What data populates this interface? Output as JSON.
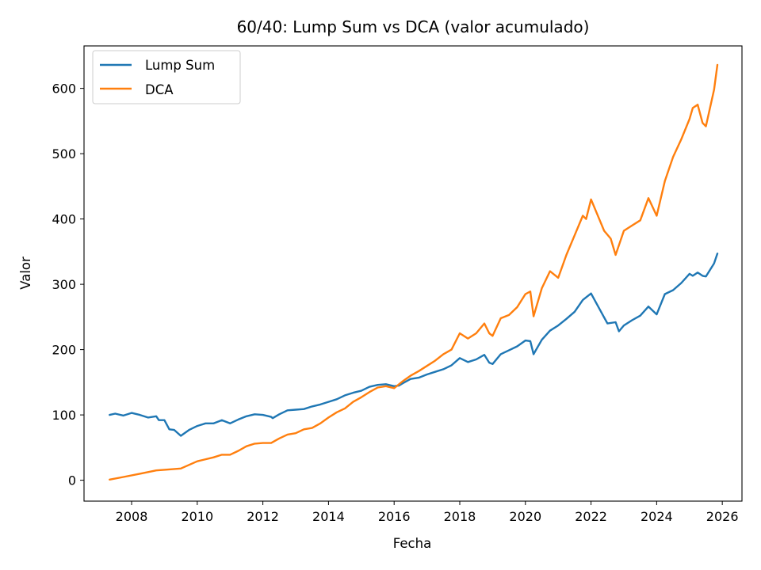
{
  "chart_data": {
    "type": "line",
    "title": "60/40: Lump Sum vs DCA (valor acumulado)",
    "xlabel": "Fecha",
    "ylabel": "Valor",
    "xlim": [
      2006.55,
      2026.6
    ],
    "ylim": [
      -32,
      665
    ],
    "xticks": [
      2008,
      2010,
      2012,
      2014,
      2016,
      2018,
      2020,
      2022,
      2024,
      2026
    ],
    "yticks": [
      0,
      100,
      200,
      300,
      400,
      500,
      600
    ],
    "grid": false,
    "legend_position": "upper-left",
    "series": [
      {
        "name": "Lump Sum",
        "color": "#1f77b4",
        "points": [
          [
            2007.33,
            100
          ],
          [
            2007.5,
            102
          ],
          [
            2007.75,
            99
          ],
          [
            2008.0,
            103
          ],
          [
            2008.25,
            100
          ],
          [
            2008.5,
            96
          ],
          [
            2008.75,
            98
          ],
          [
            2008.83,
            92
          ],
          [
            2009.0,
            92
          ],
          [
            2009.15,
            78
          ],
          [
            2009.3,
            77
          ],
          [
            2009.5,
            68
          ],
          [
            2009.75,
            77
          ],
          [
            2010.0,
            83
          ],
          [
            2010.25,
            87
          ],
          [
            2010.5,
            87
          ],
          [
            2010.75,
            92
          ],
          [
            2011.0,
            87
          ],
          [
            2011.25,
            93
          ],
          [
            2011.5,
            98
          ],
          [
            2011.75,
            101
          ],
          [
            2012.0,
            100
          ],
          [
            2012.25,
            97
          ],
          [
            2012.3,
            95
          ],
          [
            2012.5,
            101
          ],
          [
            2012.75,
            107
          ],
          [
            2013.0,
            108
          ],
          [
            2013.25,
            109
          ],
          [
            2013.5,
            113
          ],
          [
            2013.75,
            116
          ],
          [
            2014.0,
            120
          ],
          [
            2014.25,
            124
          ],
          [
            2014.5,
            130
          ],
          [
            2014.75,
            134
          ],
          [
            2015.0,
            137
          ],
          [
            2015.25,
            143
          ],
          [
            2015.5,
            146
          ],
          [
            2015.75,
            147
          ],
          [
            2016.0,
            144
          ],
          [
            2016.15,
            145
          ],
          [
            2016.25,
            148
          ],
          [
            2016.5,
            155
          ],
          [
            2016.75,
            157
          ],
          [
            2017.0,
            162
          ],
          [
            2017.25,
            166
          ],
          [
            2017.5,
            170
          ],
          [
            2017.75,
            176
          ],
          [
            2018.0,
            187
          ],
          [
            2018.25,
            181
          ],
          [
            2018.5,
            185
          ],
          [
            2018.75,
            192
          ],
          [
            2018.9,
            180
          ],
          [
            2019.0,
            178
          ],
          [
            2019.25,
            193
          ],
          [
            2019.5,
            199
          ],
          [
            2019.75,
            205
          ],
          [
            2020.0,
            214
          ],
          [
            2020.15,
            213
          ],
          [
            2020.25,
            193
          ],
          [
            2020.5,
            215
          ],
          [
            2020.75,
            229
          ],
          [
            2021.0,
            237
          ],
          [
            2021.25,
            247
          ],
          [
            2021.5,
            258
          ],
          [
            2021.75,
            276
          ],
          [
            2021.85,
            280
          ],
          [
            2022.0,
            286
          ],
          [
            2022.25,
            263
          ],
          [
            2022.5,
            240
          ],
          [
            2022.75,
            242
          ],
          [
            2022.85,
            228
          ],
          [
            2023.0,
            237
          ],
          [
            2023.25,
            245
          ],
          [
            2023.5,
            252
          ],
          [
            2023.75,
            266
          ],
          [
            2024.0,
            254
          ],
          [
            2024.25,
            285
          ],
          [
            2024.5,
            291
          ],
          [
            2024.75,
            302
          ],
          [
            2025.0,
            316
          ],
          [
            2025.1,
            313
          ],
          [
            2025.25,
            318
          ],
          [
            2025.4,
            313
          ],
          [
            2025.5,
            312
          ],
          [
            2025.75,
            332
          ],
          [
            2025.85,
            347
          ]
        ]
      },
      {
        "name": "DCA",
        "color": "#ff7f0e",
        "points": [
          [
            2007.33,
            1
          ],
          [
            2007.75,
            5
          ],
          [
            2008.25,
            10
          ],
          [
            2008.75,
            15
          ],
          [
            2009.0,
            16
          ],
          [
            2009.5,
            18
          ],
          [
            2010.0,
            29
          ],
          [
            2010.5,
            35
          ],
          [
            2010.75,
            39
          ],
          [
            2011.0,
            39
          ],
          [
            2011.25,
            45
          ],
          [
            2011.5,
            52
          ],
          [
            2011.75,
            56
          ],
          [
            2012.0,
            57
          ],
          [
            2012.25,
            57
          ],
          [
            2012.5,
            64
          ],
          [
            2012.75,
            70
          ],
          [
            2013.0,
            72
          ],
          [
            2013.25,
            78
          ],
          [
            2013.5,
            80
          ],
          [
            2013.75,
            87
          ],
          [
            2014.0,
            96
          ],
          [
            2014.25,
            104
          ],
          [
            2014.5,
            110
          ],
          [
            2014.75,
            120
          ],
          [
            2015.0,
            127
          ],
          [
            2015.25,
            135
          ],
          [
            2015.5,
            142
          ],
          [
            2015.75,
            144
          ],
          [
            2016.0,
            141
          ],
          [
            2016.25,
            151
          ],
          [
            2016.5,
            160
          ],
          [
            2016.75,
            167
          ],
          [
            2017.0,
            175
          ],
          [
            2017.25,
            183
          ],
          [
            2017.5,
            193
          ],
          [
            2017.75,
            200
          ],
          [
            2018.0,
            225
          ],
          [
            2018.25,
            217
          ],
          [
            2018.5,
            225
          ],
          [
            2018.75,
            240
          ],
          [
            2018.9,
            225
          ],
          [
            2019.0,
            221
          ],
          [
            2019.25,
            248
          ],
          [
            2019.5,
            253
          ],
          [
            2019.75,
            265
          ],
          [
            2020.0,
            285
          ],
          [
            2020.15,
            289
          ],
          [
            2020.25,
            251
          ],
          [
            2020.5,
            294
          ],
          [
            2020.75,
            320
          ],
          [
            2021.0,
            310
          ],
          [
            2021.25,
            345
          ],
          [
            2021.5,
            375
          ],
          [
            2021.75,
            405
          ],
          [
            2021.85,
            400
          ],
          [
            2022.0,
            430
          ],
          [
            2022.25,
            400
          ],
          [
            2022.4,
            382
          ],
          [
            2022.6,
            370
          ],
          [
            2022.75,
            345
          ],
          [
            2023.0,
            382
          ],
          [
            2023.25,
            390
          ],
          [
            2023.5,
            398
          ],
          [
            2023.75,
            432
          ],
          [
            2024.0,
            405
          ],
          [
            2024.25,
            458
          ],
          [
            2024.5,
            495
          ],
          [
            2024.75,
            522
          ],
          [
            2025.0,
            553
          ],
          [
            2025.1,
            570
          ],
          [
            2025.25,
            575
          ],
          [
            2025.4,
            547
          ],
          [
            2025.5,
            542
          ],
          [
            2025.75,
            598
          ],
          [
            2025.85,
            636
          ]
        ]
      }
    ]
  }
}
